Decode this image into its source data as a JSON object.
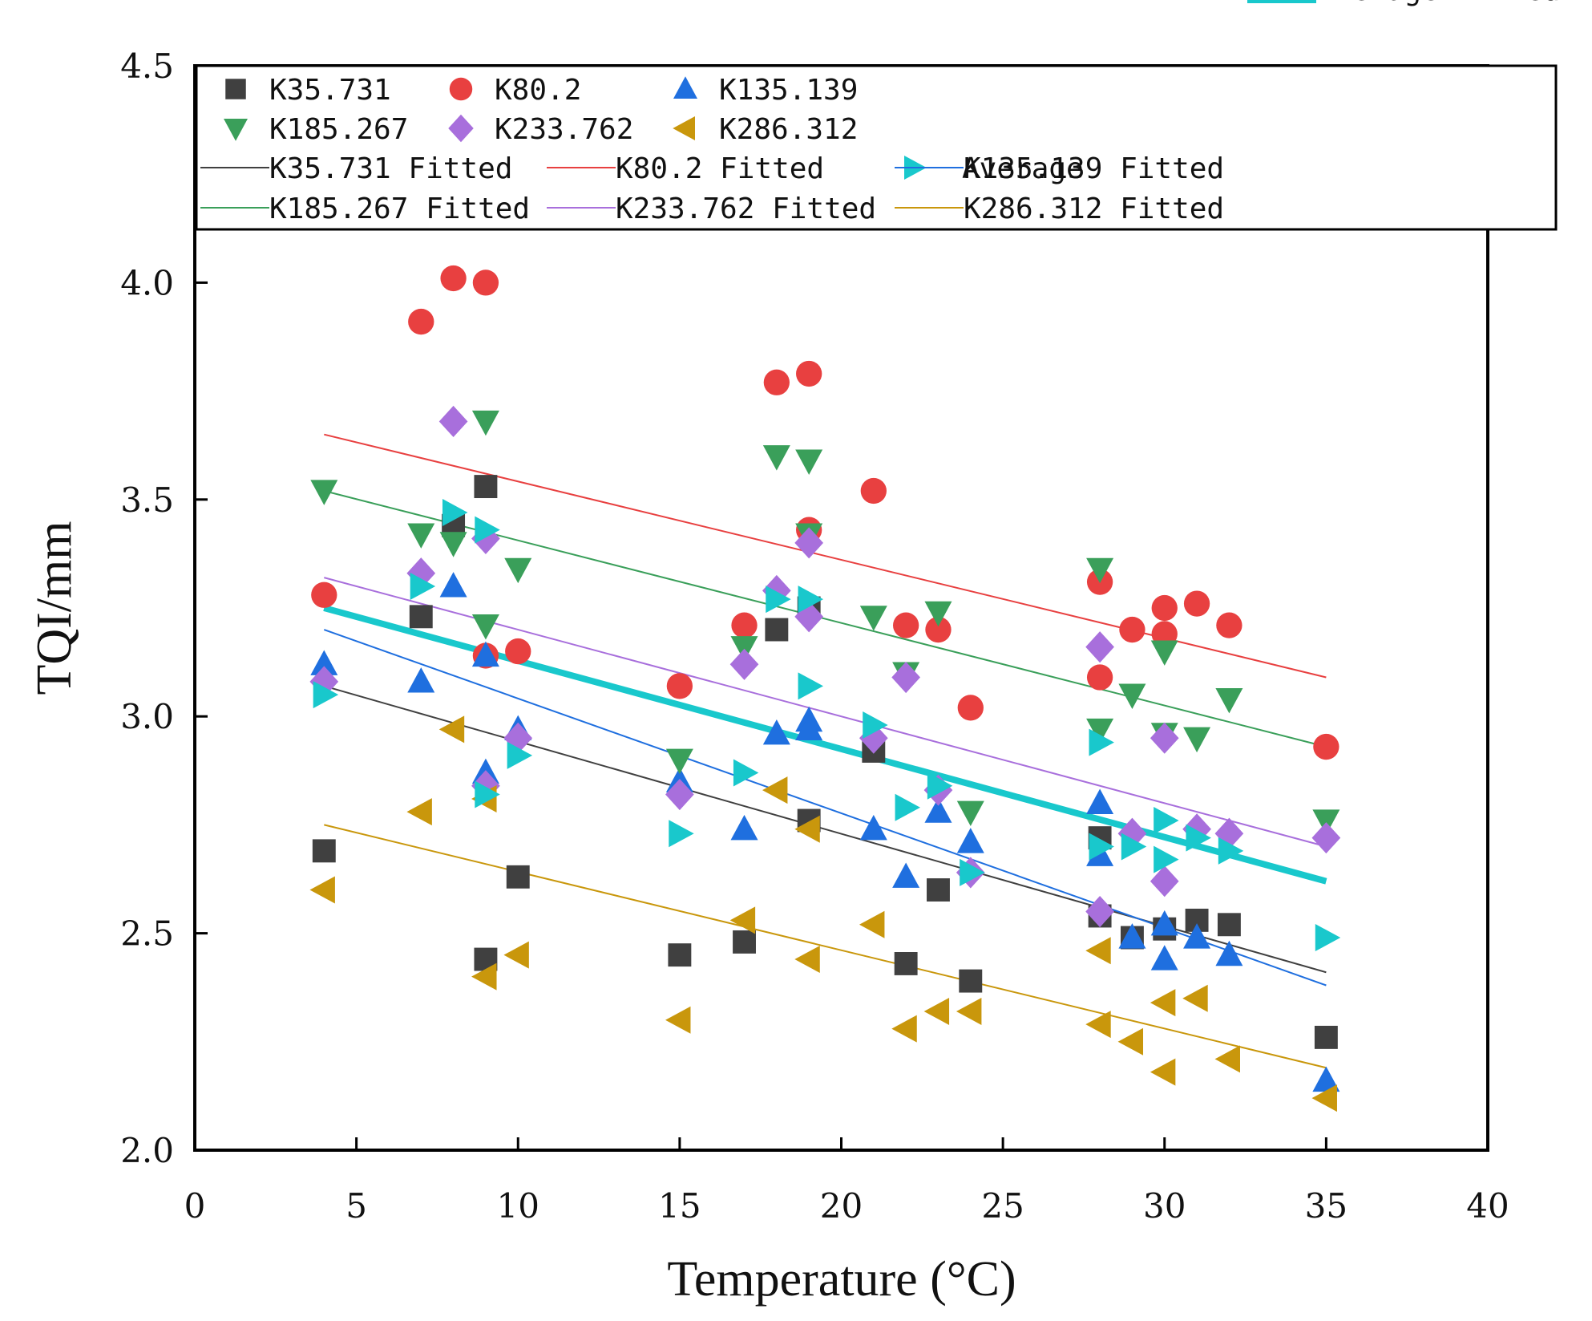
{
  "chart_data": {
    "type": "scatter",
    "xlabel": "Temperature (°C)",
    "ylabel": "TQI/mm",
    "xlim": [
      0,
      40
    ],
    "ylim": [
      2.0,
      4.5
    ],
    "xticks": [
      0,
      5,
      10,
      15,
      20,
      25,
      30,
      35,
      40
    ],
    "yticks": [
      2.0,
      2.5,
      3.0,
      3.5,
      4.0,
      4.5
    ],
    "xtick_labels": [
      "0",
      "5",
      "10",
      "15",
      "20",
      "25",
      "30",
      "35",
      "40"
    ],
    "ytick_labels": [
      "2.0",
      "2.5",
      "3.0",
      "3.5",
      "4.0",
      "4.5"
    ],
    "grid": false,
    "legend_position": "top",
    "series": [
      {
        "name": "K35.731",
        "marker": "square",
        "color": "#404040",
        "points": [
          [
            4,
            2.69
          ],
          [
            7,
            3.23
          ],
          [
            8,
            3.44
          ],
          [
            9,
            3.53
          ],
          [
            9,
            2.44
          ],
          [
            10,
            2.63
          ],
          [
            15,
            2.45
          ],
          [
            17,
            2.48
          ],
          [
            18,
            3.2
          ],
          [
            19,
            3.25
          ],
          [
            19,
            2.76
          ],
          [
            21,
            2.92
          ],
          [
            22,
            2.43
          ],
          [
            23,
            2.6
          ],
          [
            24,
            2.39
          ],
          [
            28,
            2.72
          ],
          [
            28,
            2.54
          ],
          [
            29,
            2.49
          ],
          [
            30,
            2.51
          ],
          [
            31,
            2.53
          ],
          [
            32,
            2.52
          ],
          [
            35,
            2.26
          ]
        ]
      },
      {
        "name": "K80.2",
        "marker": "circle",
        "color": "#e84040",
        "points": [
          [
            4,
            3.28
          ],
          [
            7,
            3.91
          ],
          [
            8,
            4.01
          ],
          [
            9,
            4.0
          ],
          [
            9,
            3.14
          ],
          [
            10,
            3.15
          ],
          [
            15,
            3.07
          ],
          [
            17,
            3.21
          ],
          [
            18,
            3.77
          ],
          [
            19,
            3.79
          ],
          [
            19,
            3.43
          ],
          [
            21,
            3.52
          ],
          [
            22,
            3.21
          ],
          [
            23,
            3.2
          ],
          [
            24,
            3.02
          ],
          [
            28,
            3.31
          ],
          [
            28,
            3.09
          ],
          [
            29,
            3.2
          ],
          [
            30,
            3.25
          ],
          [
            30,
            3.19
          ],
          [
            31,
            3.26
          ],
          [
            32,
            3.21
          ],
          [
            35,
            2.93
          ]
        ]
      },
      {
        "name": "K135.139",
        "marker": "triangle-up",
        "color": "#1f6fdf",
        "points": [
          [
            4,
            3.12
          ],
          [
            7,
            3.08
          ],
          [
            8,
            3.3
          ],
          [
            9,
            3.14
          ],
          [
            9,
            2.87
          ],
          [
            10,
            2.97
          ],
          [
            15,
            2.85
          ],
          [
            17,
            2.74
          ],
          [
            18,
            2.96
          ],
          [
            19,
            2.99
          ],
          [
            19,
            2.97
          ],
          [
            21,
            2.74
          ],
          [
            22,
            2.63
          ],
          [
            23,
            2.78
          ],
          [
            24,
            2.71
          ],
          [
            28,
            2.8
          ],
          [
            28,
            2.68
          ],
          [
            29,
            2.49
          ],
          [
            30,
            2.52
          ],
          [
            30,
            2.44
          ],
          [
            31,
            2.49
          ],
          [
            32,
            2.45
          ],
          [
            35,
            2.16
          ]
        ]
      },
      {
        "name": "K185.267",
        "marker": "triangle-down",
        "color": "#3a9f5a",
        "points": [
          [
            4,
            3.52
          ],
          [
            7,
            3.42
          ],
          [
            8,
            3.4
          ],
          [
            9,
            3.68
          ],
          [
            9,
            3.21
          ],
          [
            10,
            3.34
          ],
          [
            15,
            2.9
          ],
          [
            17,
            3.16
          ],
          [
            18,
            3.6
          ],
          [
            19,
            3.59
          ],
          [
            19,
            3.42
          ],
          [
            21,
            3.23
          ],
          [
            22,
            3.1
          ],
          [
            23,
            3.24
          ],
          [
            24,
            2.78
          ],
          [
            28,
            3.34
          ],
          [
            28,
            2.97
          ],
          [
            29,
            3.05
          ],
          [
            30,
            3.15
          ],
          [
            30,
            2.96
          ],
          [
            31,
            2.95
          ],
          [
            32,
            3.04
          ],
          [
            35,
            2.76
          ]
        ]
      },
      {
        "name": "K233.762",
        "marker": "diamond",
        "color": "#a86fdc",
        "points": [
          [
            4,
            3.08
          ],
          [
            7,
            3.33
          ],
          [
            8,
            3.68
          ],
          [
            9,
            3.41
          ],
          [
            9,
            2.84
          ],
          [
            10,
            2.95
          ],
          [
            15,
            2.82
          ],
          [
            17,
            3.12
          ],
          [
            18,
            3.29
          ],
          [
            19,
            3.4
          ],
          [
            19,
            3.23
          ],
          [
            21,
            2.95
          ],
          [
            22,
            3.09
          ],
          [
            23,
            2.83
          ],
          [
            24,
            2.64
          ],
          [
            28,
            3.16
          ],
          [
            28,
            2.55
          ],
          [
            29,
            2.73
          ],
          [
            30,
            2.95
          ],
          [
            30,
            2.62
          ],
          [
            31,
            2.74
          ],
          [
            32,
            2.73
          ],
          [
            35,
            2.72
          ]
        ]
      },
      {
        "name": "K286.312",
        "marker": "triangle-left",
        "color": "#c9970c",
        "points": [
          [
            4,
            2.6
          ],
          [
            7,
            2.78
          ],
          [
            8,
            2.97
          ],
          [
            9,
            2.81
          ],
          [
            9,
            2.4
          ],
          [
            10,
            2.45
          ],
          [
            15,
            2.3
          ],
          [
            17,
            2.53
          ],
          [
            18,
            2.83
          ],
          [
            19,
            2.74
          ],
          [
            19,
            2.44
          ],
          [
            21,
            2.52
          ],
          [
            22,
            2.28
          ],
          [
            23,
            2.32
          ],
          [
            24,
            2.32
          ],
          [
            28,
            2.46
          ],
          [
            28,
            2.29
          ],
          [
            29,
            2.25
          ],
          [
            30,
            2.34
          ],
          [
            30,
            2.18
          ],
          [
            31,
            2.35
          ],
          [
            32,
            2.21
          ],
          [
            35,
            2.12
          ]
        ]
      },
      {
        "name": "Average",
        "marker": "triangle-right",
        "color": "#19c8cc",
        "points": [
          [
            4,
            3.05
          ],
          [
            7,
            3.3
          ],
          [
            8,
            3.47
          ],
          [
            9,
            3.43
          ],
          [
            9,
            2.82
          ],
          [
            10,
            2.91
          ],
          [
            15,
            2.73
          ],
          [
            17,
            2.87
          ],
          [
            18,
            3.27
          ],
          [
            19,
            3.27
          ],
          [
            19,
            3.07
          ],
          [
            21,
            2.98
          ],
          [
            22,
            2.79
          ],
          [
            23,
            2.84
          ],
          [
            24,
            2.64
          ],
          [
            28,
            2.94
          ],
          [
            28,
            2.7
          ],
          [
            29,
            2.7
          ],
          [
            30,
            2.76
          ],
          [
            30,
            2.67
          ],
          [
            31,
            2.72
          ],
          [
            32,
            2.69
          ],
          [
            35,
            2.49
          ]
        ]
      }
    ],
    "fitted_lines": [
      {
        "name": "K35.731 Fitted",
        "color": "#404040",
        "width": 2,
        "x": [
          4,
          35
        ],
        "y": [
          3.07,
          2.41
        ]
      },
      {
        "name": "K80.2 Fitted",
        "color": "#e84040",
        "width": 2,
        "x": [
          4,
          35
        ],
        "y": [
          3.65,
          3.09
        ]
      },
      {
        "name": "K135.139 Fitted",
        "color": "#1f6fdf",
        "width": 2,
        "x": [
          4,
          35
        ],
        "y": [
          3.2,
          2.38
        ]
      },
      {
        "name": "K185.267 Fitted",
        "color": "#3a9f5a",
        "width": 2,
        "x": [
          4,
          35
        ],
        "y": [
          3.52,
          2.93
        ]
      },
      {
        "name": "K233.762 Fitted",
        "color": "#a86fdc",
        "width": 2,
        "x": [
          4,
          35
        ],
        "y": [
          3.32,
          2.7
        ]
      },
      {
        "name": "K286.312 Fitted",
        "color": "#c9970c",
        "width": 2,
        "x": [
          4,
          35
        ],
        "y": [
          2.75,
          2.19
        ]
      },
      {
        "name": "Average Fitted",
        "color": "#19c8cc",
        "width": 8,
        "x": [
          4,
          35
        ],
        "y": [
          3.25,
          2.62
        ]
      }
    ]
  }
}
